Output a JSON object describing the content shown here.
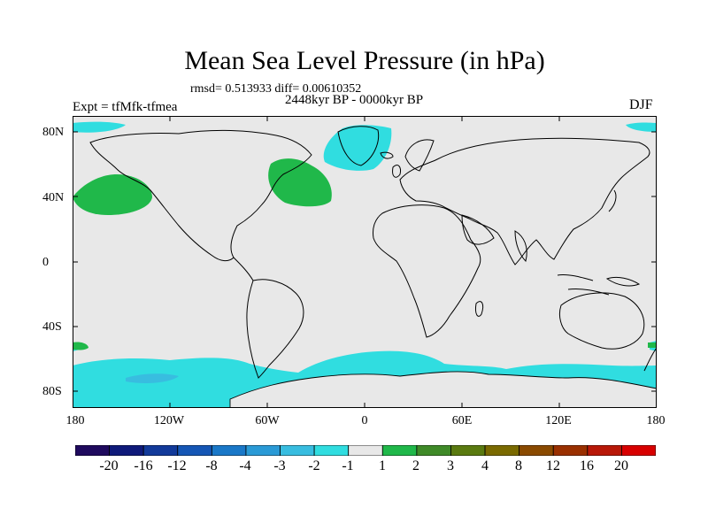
{
  "title": "Mean Sea Level Pressure (in hPa)",
  "stats": "rmsd= 0.513933 diff= 0.00610352",
  "period": "2448kyr BP - 0000kyr BP",
  "experiment": "Expt = tfMfk-tfmea",
  "season": "DJF",
  "lat_labels": [
    "80N",
    "40N",
    "0",
    "40S",
    "80S"
  ],
  "lon_labels": [
    "180",
    "120W",
    "60W",
    "0",
    "60E",
    "120E",
    "180"
  ],
  "colorbar": {
    "colors": [
      "#1f0a5e",
      "#0f1a7a",
      "#123a9a",
      "#1556b5",
      "#1a78c8",
      "#2a9ad6",
      "#38bde0",
      "#30dde0",
      "#e8e8e8",
      "#20b84a",
      "#3f8a28",
      "#5a7a10",
      "#7a6a00",
      "#8a4a00",
      "#9a3000",
      "#b81808",
      "#d80000"
    ],
    "labels": [
      "-20",
      "-16",
      "-12",
      "-8",
      "-4",
      "-3",
      "-2",
      "-1",
      "1",
      "2",
      "3",
      "4",
      "8",
      "12",
      "16",
      "20"
    ]
  },
  "anomaly_colors": {
    "neutral": "#e8e8e8",
    "negative_light": "#30dde0",
    "negative_medium": "#38bde0",
    "positive": "#20b84a"
  }
}
